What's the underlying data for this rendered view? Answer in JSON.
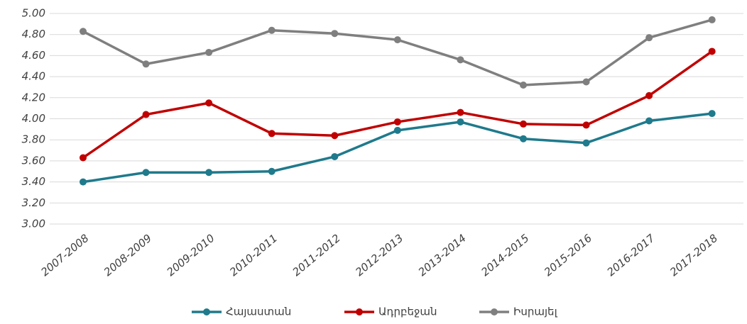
{
  "chart_data": {
    "type": "line",
    "categories": [
      "2007-2008",
      "2008-2009",
      "2009-2010",
      "2010-2011",
      "2011-2012",
      "2012-2013",
      "2013-2014",
      "2014-2015",
      "2015-2016",
      "2016-2017",
      "2017-2018"
    ],
    "series": [
      {
        "name": "Հայաստան",
        "color": "#1f7a8c",
        "values": [
          3.4,
          3.49,
          3.49,
          3.5,
          3.64,
          3.89,
          3.97,
          3.81,
          3.77,
          3.98,
          4.05
        ]
      },
      {
        "name": "Ադրբեջան",
        "color": "#c00000",
        "values": [
          3.63,
          4.04,
          4.15,
          3.86,
          3.84,
          3.97,
          4.06,
          3.95,
          3.94,
          4.22,
          4.64
        ]
      },
      {
        "name": "Իսրայել",
        "color": "#7f7f7f",
        "values": [
          4.83,
          4.52,
          4.63,
          4.84,
          4.81,
          4.75,
          4.56,
          4.32,
          4.35,
          4.77,
          4.94
        ]
      }
    ],
    "ylim": [
      3,
      5
    ],
    "yticks": [
      {
        "value": 3,
        "label": "3.00"
      },
      {
        "value": 3.2,
        "label": "3.20"
      },
      {
        "value": 3.4,
        "label": "3.40"
      },
      {
        "value": 3.6,
        "label": "3.60"
      },
      {
        "value": 3.8,
        "label": "3.80"
      },
      {
        "value": 4,
        "label": "4.00"
      },
      {
        "value": 4.2,
        "label": "4.20"
      },
      {
        "value": 4.4,
        "label": "4.40"
      },
      {
        "value": 4.6,
        "label": "4.60"
      },
      {
        "value": 4.8,
        "label": "4.80"
      },
      {
        "value": 5,
        "label": "5.00"
      }
    ],
    "grid": true,
    "legend": "bottom"
  }
}
